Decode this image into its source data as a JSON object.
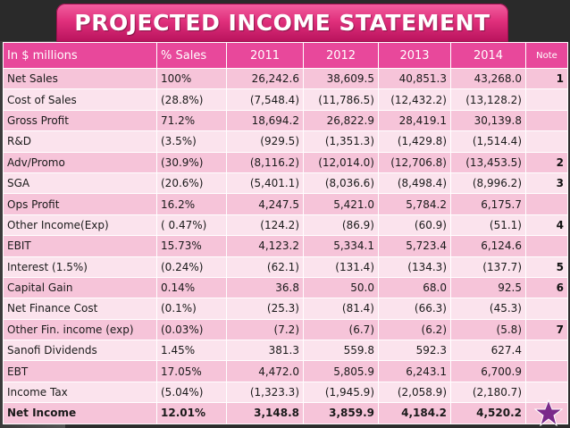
{
  "title": "PROJECTED INCOME STATEMENT",
  "table": {
    "headers": [
      "In $ millions",
      "% Sales",
      "2011",
      "2012",
      "2013",
      "2014",
      "Note"
    ],
    "rows": [
      {
        "label": "Net Sales",
        "pct": "100%",
        "v2011": "26,242.6",
        "v2012": "38,609.5",
        "v2013": "40,851.3",
        "v2014": "43,268.0",
        "note": "1"
      },
      {
        "label": "Cost of Sales",
        "pct": "(28.8%)",
        "v2011": "(7,548.4)",
        "v2012": "(11,786.5)",
        "v2013": "(12,432.2)",
        "v2014": "(13,128.2)",
        "note": ""
      },
      {
        "label": "Gross Profit",
        "pct": "71.2%",
        "v2011": "18,694.2",
        "v2012": "26,822.9",
        "v2013": "28,419.1",
        "v2014": "30,139.8",
        "note": ""
      },
      {
        "label": "R&D",
        "pct": "(3.5%)",
        "v2011": "(929.5)",
        "v2012": "(1,351.3)",
        "v2013": "(1,429.8)",
        "v2014": "(1,514.4)",
        "note": ""
      },
      {
        "label": "Adv/Promo",
        "pct": "(30.9%)",
        "v2011": "(8,116.2)",
        "v2012": "(12,014.0)",
        "v2013": "(12,706.8)",
        "v2014": "(13,453.5)",
        "note": "2"
      },
      {
        "label": "SGA",
        "pct": "(20.6%)",
        "v2011": "(5,401.1)",
        "v2012": "(8,036.6)",
        "v2013": "(8,498.4)",
        "v2014": "(8,996.2)",
        "note": "3"
      },
      {
        "label": "Ops Profit",
        "pct": "16.2%",
        "v2011": "4,247.5",
        "v2012": "5,421.0",
        "v2013": "5,784.2",
        "v2014": "6,175.7",
        "note": ""
      },
      {
        "label": "Other Income(Exp)",
        "pct": "( 0.47%)",
        "v2011": "(124.2)",
        "v2012": "(86.9)",
        "v2013": "(60.9)",
        "v2014": "(51.1)",
        "note": "4"
      },
      {
        "label": "EBIT",
        "pct": "15.73%",
        "v2011": "4,123.2",
        "v2012": "5,334.1",
        "v2013": "5,723.4",
        "v2014": "6,124.6",
        "note": ""
      },
      {
        "label": "Interest (1.5%)",
        "pct": "(0.24%)",
        "v2011": "(62.1)",
        "v2012": "(131.4)",
        "v2013": "(134.3)",
        "v2014": "(137.7)",
        "note": "5"
      },
      {
        "label": "Capital Gain",
        "pct": "0.14%",
        "v2011": "36.8",
        "v2012": "50.0",
        "v2013": "68.0",
        "v2014": "92.5",
        "note": "6"
      },
      {
        "label": "Net Finance Cost",
        "pct": "(0.1%)",
        "v2011": "(25.3)",
        "v2012": "(81.4)",
        "v2013": "(66.3)",
        "v2014": "(45.3)",
        "note": ""
      },
      {
        "label": "Other Fin. income (exp)",
        "pct": "(0.03%)",
        "v2011": "(7.2)",
        "v2012": "(6.7)",
        "v2013": "(6.2)",
        "v2014": "(5.8)",
        "note": "7"
      },
      {
        "label": "Sanofi Dividends",
        "pct": "1.45%",
        "v2011": "381.3",
        "v2012": "559.8",
        "v2013": "592.3",
        "v2014": "627.4",
        "note": ""
      },
      {
        "label": "EBT",
        "pct": "17.05%",
        "v2011": "4,472.0",
        "v2012": "5,805.9",
        "v2013": "6,243.1",
        "v2014": "6,700.9",
        "note": ""
      },
      {
        "label": "Income Tax",
        "pct": "(5.04%)",
        "v2011": "(1,323.3)",
        "v2012": "(1,945.9)",
        "v2013": "(2,058.9)",
        "v2014": "(2,180.7)",
        "note": ""
      },
      {
        "label": "Net Income",
        "pct": "12.01%",
        "v2011": "3,148.8",
        "v2012": "3,859.9",
        "v2013": "4,184.2",
        "v2014": "4,520.2",
        "note": ""
      }
    ]
  },
  "icons": {
    "corner_icon": "star-icon"
  },
  "colors": {
    "header_bg": "#e8489b",
    "row_odd": "#f6c4d9",
    "row_even": "#fbe3ed",
    "title_accent": "#e0307c",
    "star_fill": "#7a2a8a"
  }
}
